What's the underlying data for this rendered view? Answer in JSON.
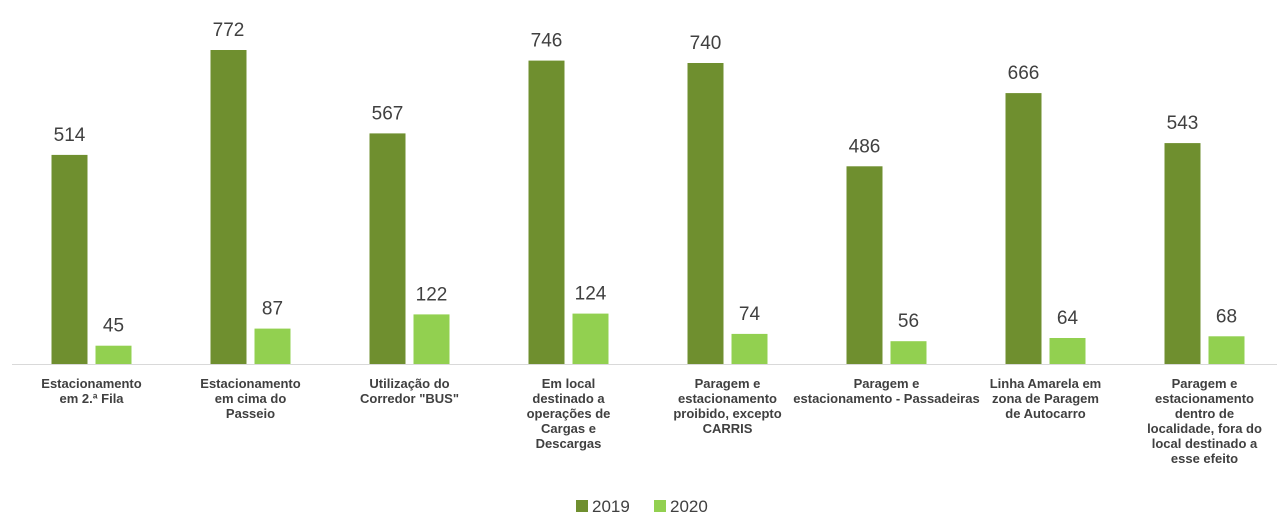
{
  "chart_data": {
    "type": "bar",
    "title": "",
    "xlabel": "",
    "ylabel": "",
    "categories": [
      [
        "Estacionamento",
        "em 2.ª Fila"
      ],
      [
        "Estacionamento",
        "em cima do",
        "Passeio"
      ],
      [
        "Utilização do",
        "Corredor \"BUS\""
      ],
      [
        "Em local",
        "destinado a",
        "operações de",
        "Cargas e",
        "Descargas"
      ],
      [
        "Paragem e",
        "estacionamento",
        "proibido, excepto",
        "CARRIS"
      ],
      [
        "Paragem e",
        "estacionamento - Passadeiras"
      ],
      [
        "Linha Amarela em",
        "zona de Paragem",
        "de Autocarro"
      ],
      [
        "Paragem e",
        "estacionamento",
        "dentro de",
        "localidade, fora do",
        "local destinado a",
        "esse efeito"
      ]
    ],
    "series": [
      {
        "name": "2019",
        "values": [
          514,
          772,
          567,
          746,
          740,
          486,
          666,
          543
        ],
        "color": "#6f8f2f"
      },
      {
        "name": "2020",
        "values": [
          45,
          87,
          122,
          124,
          74,
          56,
          64,
          68
        ],
        "color": "#92d050"
      }
    ],
    "ylim": [
      0,
      800
    ],
    "grid": false,
    "legend_position": "bottom"
  }
}
